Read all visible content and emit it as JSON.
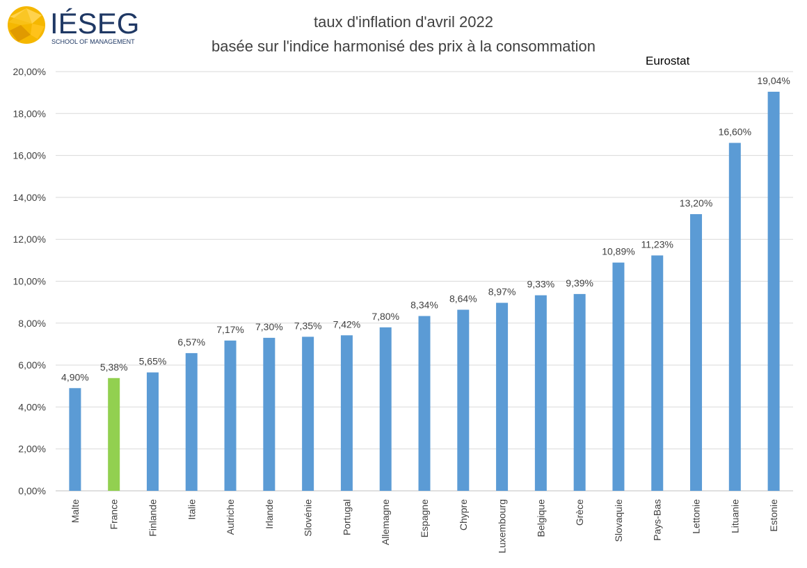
{
  "logo": {
    "name": "IÉSEG",
    "tagline": "SCHOOL OF MANAGEMENT"
  },
  "title": "taux d'inflation d'avril 2022",
  "subtitle": "basée sur l'indice harmonisé des prix à la consommation",
  "source_label": "Eurostat",
  "colors": {
    "bar": "#5B9BD5",
    "highlight": "#92D050",
    "grid": "#d9d9d9",
    "text": "#404040",
    "logo_accent": "#F5B700",
    "logo_navy": "#1F3864"
  },
  "chart_data": {
    "type": "bar",
    "title": "taux d'inflation d'avril 2022",
    "subtitle": "basée sur l'indice harmonisé des prix à la consommation",
    "categories": [
      "Malte",
      "France",
      "Finlande",
      "Italie",
      "Autriche",
      "Irlande",
      "Slovénie",
      "Portugal",
      "Allemagne",
      "Espagne",
      "Chypre",
      "Luxembourg",
      "Belgique",
      "Grèce",
      "Slovaquie",
      "Pays-Bas",
      "Lettonie",
      "Lituanie",
      "Estonie"
    ],
    "values": [
      4.9,
      5.38,
      5.65,
      6.57,
      7.17,
      7.3,
      7.35,
      7.42,
      7.8,
      8.34,
      8.64,
      8.97,
      9.33,
      9.39,
      10.89,
      11.23,
      13.2,
      16.6,
      19.04
    ],
    "data_labels": [
      "4,90%",
      "5,38%",
      "5,65%",
      "6,57%",
      "7,17%",
      "7,30%",
      "7,35%",
      "7,42%",
      "7,80%",
      "8,34%",
      "8,64%",
      "8,97%",
      "9,33%",
      "9,39%",
      "10,89%",
      "11,23%",
      "13,20%",
      "16,60%",
      "19,04%"
    ],
    "highlight_category": "France",
    "ylim": [
      0,
      20
    ],
    "yticks": [
      0,
      2,
      4,
      6,
      8,
      10,
      12,
      14,
      16,
      18,
      20
    ],
    "ytick_labels": [
      "0,00%",
      "2,00%",
      "4,00%",
      "6,00%",
      "8,00%",
      "10,00%",
      "12,00%",
      "14,00%",
      "16,00%",
      "18,00%",
      "20,00%"
    ],
    "grid": true,
    "legend": "none"
  }
}
